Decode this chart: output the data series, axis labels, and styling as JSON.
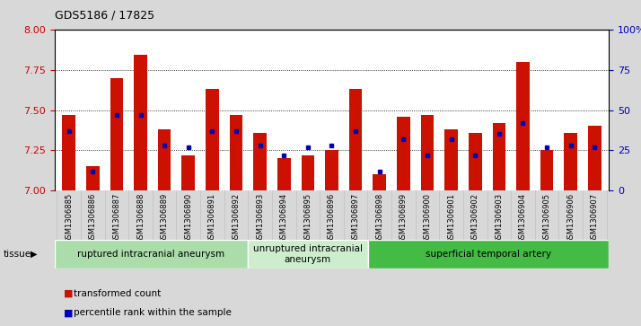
{
  "title": "GDS5186 / 17825",
  "samples": [
    "GSM1306885",
    "GSM1306886",
    "GSM1306887",
    "GSM1306888",
    "GSM1306889",
    "GSM1306890",
    "GSM1306891",
    "GSM1306892",
    "GSM1306893",
    "GSM1306894",
    "GSM1306895",
    "GSM1306896",
    "GSM1306897",
    "GSM1306898",
    "GSM1306899",
    "GSM1306900",
    "GSM1306901",
    "GSM1306902",
    "GSM1306903",
    "GSM1306904",
    "GSM1306905",
    "GSM1306906",
    "GSM1306907"
  ],
  "red_values": [
    7.47,
    7.15,
    7.7,
    7.84,
    7.38,
    7.22,
    7.63,
    7.47,
    7.36,
    7.2,
    7.22,
    7.25,
    7.63,
    7.1,
    7.46,
    7.47,
    7.38,
    7.36,
    7.42,
    7.8,
    7.25,
    7.36,
    7.4
  ],
  "blue_values_pct": [
    37,
    12,
    47,
    47,
    28,
    27,
    37,
    37,
    28,
    22,
    27,
    28,
    37,
    12,
    32,
    22,
    32,
    22,
    35,
    42,
    27,
    28,
    27
  ],
  "ylim_left": [
    7.0,
    8.0
  ],
  "ylim_right": [
    0,
    100
  ],
  "yticks_left": [
    7.0,
    7.25,
    7.5,
    7.75,
    8.0
  ],
  "yticks_right": [
    0,
    25,
    50,
    75,
    100
  ],
  "ytick_right_labels": [
    "0",
    "25",
    "50",
    "75",
    "100%"
  ],
  "ylabel_left_color": "#cc0000",
  "ylabel_right_color": "#0000bb",
  "bar_color": "#cc1100",
  "marker_color": "#0000bb",
  "bg_color": "#d8d8d8",
  "plot_bg": "#ffffff",
  "tick_bg_color": "#d8d8d8",
  "groups": [
    {
      "label": "ruptured intracranial aneurysm",
      "start": 0,
      "end": 8
    },
    {
      "label": "unruptured intracranial\naneurysm",
      "start": 8,
      "end": 13
    },
    {
      "label": "superficial temporal artery",
      "start": 13,
      "end": 23
    }
  ],
  "group_colors": [
    "#aaddaa",
    "#cceecc",
    "#44bb44"
  ],
  "group_edge_colors": [
    "#88cc88",
    "#aaddaa",
    "#22aa22"
  ],
  "legend_labels": [
    "transformed count",
    "percentile rank within the sample"
  ],
  "legend_colors": [
    "#cc1100",
    "#0000bb"
  ],
  "tissue_label": "tissue"
}
